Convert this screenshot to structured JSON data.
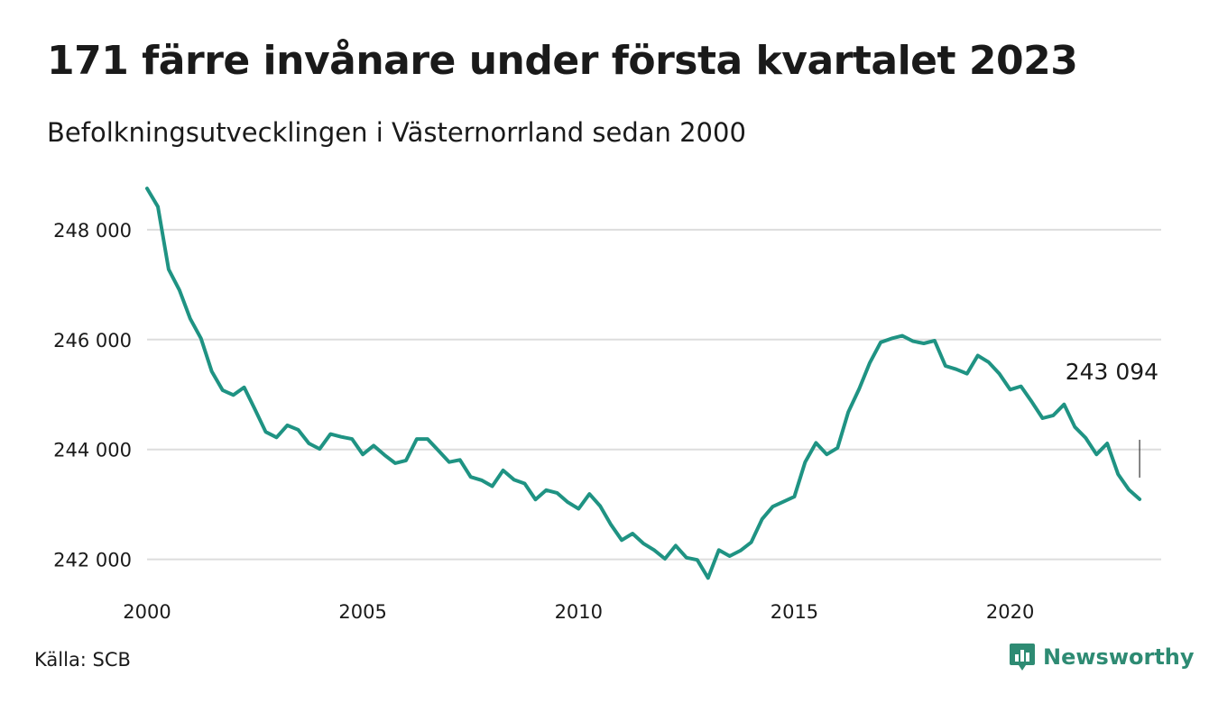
{
  "header": {
    "title": "171 färre invånare under första kvartalet 2023",
    "subtitle": "Befolkningsutvecklingen i Västernorrland sedan 2000"
  },
  "footer": {
    "source": "Källa: SCB",
    "brand": "Newsworthy"
  },
  "colors": {
    "line": "#1f9383",
    "grid": "#dddddd",
    "brand": "#2e8b73"
  },
  "brand_icon": "newsworthy-logo-icon",
  "chart_data": {
    "type": "line",
    "title": "171 färre invånare under första kvartalet 2023",
    "subtitle": "Befolkningsutvecklingen i Västernorrland sedan 2000",
    "xlabel": "",
    "ylabel": "",
    "grid": true,
    "xlim": [
      2000,
      2023.5
    ],
    "ylim": [
      241600,
      248900
    ],
    "x_ticks": [
      2000,
      2005,
      2010,
      2015,
      2020
    ],
    "x_tick_labels": [
      "2000",
      "2005",
      "2010",
      "2015",
      "2020"
    ],
    "y_ticks": [
      242000,
      244000,
      246000,
      248000
    ],
    "y_tick_labels": [
      "242 000",
      "244 000",
      "246 000",
      "248 000"
    ],
    "end_label": "243 094",
    "series": [
      {
        "x": [
          2000.0,
          2000.25,
          2000.5,
          2000.75,
          2001.0,
          2001.25,
          2001.5,
          2001.75,
          2002.0,
          2002.25,
          2002.5,
          2002.75,
          2003.0,
          2003.25,
          2003.5,
          2003.75,
          2004.0,
          2004.25,
          2004.5,
          2004.75,
          2005.0,
          2005.25,
          2005.5,
          2005.75,
          2006.0,
          2006.25,
          2006.5,
          2006.75,
          2007.0,
          2007.25,
          2007.5,
          2007.75,
          2008.0,
          2008.25,
          2008.5,
          2008.75,
          2009.0,
          2009.25,
          2009.5,
          2009.75,
          2010.0,
          2010.25,
          2010.5,
          2010.75,
          2011.0,
          2011.25,
          2011.5,
          2011.75,
          2012.0,
          2012.25,
          2012.5,
          2012.75,
          2013.0,
          2013.25,
          2013.5,
          2013.75,
          2014.0,
          2014.25,
          2014.5,
          2014.75,
          2015.0,
          2015.25,
          2015.5,
          2015.75,
          2016.0,
          2016.25,
          2016.5,
          2016.75,
          2017.0,
          2017.25,
          2017.5,
          2017.75,
          2018.0,
          2018.25,
          2018.5,
          2018.75,
          2019.0,
          2019.25,
          2019.5,
          2019.75,
          2020.0,
          2020.25,
          2020.5,
          2020.75,
          2021.0,
          2021.25,
          2021.5,
          2021.75,
          2022.0,
          2022.25,
          2022.5,
          2022.75,
          2023.0
        ],
        "values": [
          248750,
          248420,
          247280,
          246900,
          246380,
          246020,
          245420,
          245080,
          244990,
          245130,
          244730,
          244320,
          244220,
          244440,
          244360,
          244110,
          244010,
          244280,
          244230,
          244190,
          243910,
          244070,
          243900,
          243750,
          243800,
          244190,
          244190,
          243980,
          243770,
          243810,
          243500,
          243440,
          243330,
          243620,
          243450,
          243380,
          243090,
          243260,
          243210,
          243040,
          242920,
          243190,
          242970,
          242630,
          242350,
          242470,
          242290,
          242170,
          242010,
          242250,
          242030,
          241990,
          241660,
          242170,
          242060,
          242160,
          242310,
          242730,
          242960,
          243050,
          243140,
          243770,
          244120,
          243910,
          244030,
          244680,
          245100,
          245580,
          245950,
          246020,
          246070,
          245970,
          245930,
          245980,
          245520,
          245460,
          245380,
          245710,
          245590,
          245380,
          245090,
          245150,
          244870,
          244570,
          244620,
          244820,
          244410,
          244210,
          243910,
          244110,
          243550,
          243270,
          243094
        ]
      }
    ]
  }
}
